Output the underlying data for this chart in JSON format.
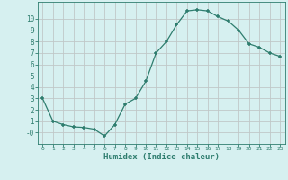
{
  "x": [
    0,
    1,
    2,
    3,
    4,
    5,
    6,
    7,
    8,
    9,
    10,
    11,
    12,
    13,
    14,
    15,
    16,
    17,
    18,
    19,
    20,
    21,
    22,
    23
  ],
  "y": [
    3.0,
    1.0,
    0.7,
    0.5,
    0.45,
    0.3,
    -0.3,
    0.7,
    2.5,
    3.0,
    4.5,
    7.0,
    8.0,
    9.5,
    10.7,
    10.8,
    10.7,
    10.2,
    9.8,
    9.0,
    7.8,
    7.5,
    7.0,
    6.7
  ],
  "xlabel": "Humidex (Indice chaleur)",
  "xlim": [
    -0.5,
    23.5
  ],
  "ylim": [
    -1.0,
    11.5
  ],
  "yticks": [
    0,
    1,
    2,
    3,
    4,
    5,
    6,
    7,
    8,
    9,
    10
  ],
  "xticks": [
    0,
    1,
    2,
    3,
    4,
    5,
    6,
    7,
    8,
    9,
    10,
    11,
    12,
    13,
    14,
    15,
    16,
    17,
    18,
    19,
    20,
    21,
    22,
    23
  ],
  "line_color": "#2e7d6e",
  "marker": "+",
  "bg_color": "#d6f0f0",
  "grid_color": "#c0c8c8",
  "axis_color": "#2e7d6e",
  "tick_label_color": "#2e7d6e",
  "xlabel_color": "#2e7d6e"
}
